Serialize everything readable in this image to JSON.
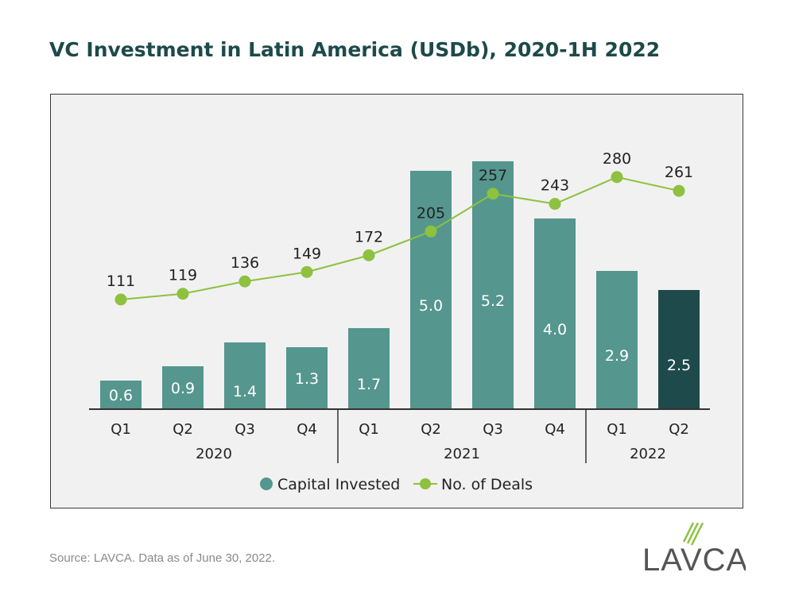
{
  "title": "VC Investment in Latin America (USDb), 2020-1H 2022",
  "source": "Source: LAVCA. Data as of June 30, 2022.",
  "logo": {
    "text": "LAVCA"
  },
  "colors": {
    "bar": "#55968e",
    "bar_highlight": "#1e4a4b",
    "line": "#8dc13f",
    "title": "#1d4a4a"
  },
  "chart_data": {
    "type": "bar",
    "categories": [
      "Q1",
      "Q2",
      "Q3",
      "Q4",
      "Q1",
      "Q2",
      "Q3",
      "Q4",
      "Q1",
      "Q2"
    ],
    "groups": [
      {
        "label": "2020",
        "count": 4
      },
      {
        "label": "2021",
        "count": 4
      },
      {
        "label": "2022",
        "count": 2
      }
    ],
    "series": [
      {
        "name": "Capital Invested",
        "type": "bar",
        "values": [
          0.6,
          0.9,
          1.4,
          1.3,
          1.7,
          5.0,
          5.2,
          4.0,
          2.9,
          2.5
        ],
        "labels": [
          "0.6",
          "0.9",
          "1.4",
          "1.3",
          "1.7",
          "5.0",
          "5.2",
          "4.0",
          "2.9",
          "2.5"
        ],
        "highlight_index": 9
      },
      {
        "name": "No. of Deals",
        "type": "line",
        "values": [
          111,
          119,
          136,
          149,
          172,
          205,
          257,
          243,
          280,
          261
        ]
      }
    ],
    "legend": {
      "placement": "bottom"
    },
    "grid": false
  }
}
